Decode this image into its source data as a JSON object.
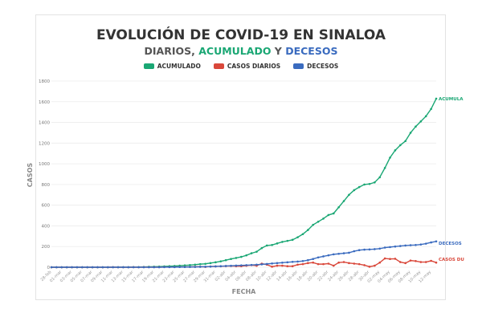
{
  "chart_data": {
    "type": "line",
    "title": "EVOLUCIÓN DE COVID-19 EN SINALOA",
    "subtitle": {
      "part1": "DIARIOS, ",
      "part2": "ACUMULADO",
      "part3": " Y ",
      "part4": "DECESOS"
    },
    "xlabel": "FECHA",
    "ylabel": "CASOS",
    "ylim": [
      0,
      1800
    ],
    "yticks": [
      0,
      200,
      400,
      600,
      800,
      1000,
      1200,
      1400,
      1600,
      1800
    ],
    "grid": true,
    "legend_position": "top",
    "xtick_labels": [
      "28-feb",
      "01-mar",
      "03-mar",
      "05-mar",
      "07-mar",
      "09-mar",
      "11-mar",
      "13-mar",
      "15-mar",
      "17-mar",
      "19-mar",
      "21-mar",
      "23-mar",
      "25-mar",
      "27-mar",
      "29-mar",
      "31-mar",
      "02-abr",
      "04-abr",
      "06-abr",
      "08-abr",
      "10-abr",
      "12-abr",
      "14-abr",
      "16-abr",
      "18-abr",
      "20-abr",
      "22-abr",
      "24-abr",
      "26-abr",
      "28-abr",
      "30-abr",
      "02-may",
      "04-may",
      "06-may",
      "08-may",
      "10-may",
      "12-may"
    ],
    "series": [
      {
        "name": "ACUMULADO",
        "end_label": "ACUMULA",
        "color": "#1aa774",
        "values": [
          0,
          0,
          0,
          0,
          0,
          0,
          0,
          0,
          0,
          0,
          0,
          0,
          1,
          1,
          1,
          1,
          2,
          2,
          3,
          4,
          5,
          6,
          8,
          10,
          12,
          15,
          18,
          21,
          25,
          30,
          33,
          40,
          48,
          57,
          68,
          80,
          90,
          100,
          115,
          135,
          150,
          185,
          210,
          215,
          230,
          245,
          255,
          265,
          290,
          320,
          360,
          410,
          440,
          470,
          505,
          520,
          580,
          640,
          700,
          745,
          775,
          800,
          805,
          820,
          870,
          960,
          1060,
          1130,
          1180,
          1220,
          1300,
          1360,
          1410,
          1460,
          1530,
          1630
        ]
      },
      {
        "name": "CASOS DIARIOS",
        "end_label": "CASOS DU",
        "color": "#d9473a",
        "values": [
          0,
          0,
          0,
          0,
          0,
          0,
          0,
          0,
          0,
          0,
          0,
          0,
          1,
          0,
          0,
          0,
          1,
          0,
          1,
          1,
          1,
          1,
          2,
          2,
          2,
          3,
          3,
          3,
          4,
          5,
          3,
          7,
          8,
          9,
          11,
          12,
          10,
          10,
          15,
          20,
          15,
          35,
          25,
          5,
          15,
          15,
          10,
          10,
          25,
          30,
          40,
          45,
          30,
          30,
          35,
          15,
          45,
          50,
          40,
          35,
          30,
          20,
          5,
          15,
          45,
          85,
          80,
          82,
          50,
          40,
          65,
          60,
          50,
          50,
          62,
          45
        ]
      },
      {
        "name": "DECESOS",
        "end_label": "DECESOS",
        "color": "#3a6bbf",
        "values": [
          0,
          0,
          0,
          0,
          0,
          0,
          0,
          0,
          0,
          0,
          0,
          0,
          0,
          0,
          0,
          0,
          0,
          0,
          0,
          0,
          0,
          0,
          1,
          1,
          1,
          2,
          2,
          3,
          3,
          4,
          5,
          6,
          8,
          10,
          12,
          14,
          16,
          18,
          20,
          22,
          25,
          28,
          32,
          36,
          40,
          44,
          48,
          52,
          55,
          60,
          68,
          80,
          95,
          105,
          115,
          125,
          130,
          135,
          140,
          155,
          165,
          170,
          172,
          175,
          180,
          190,
          195,
          200,
          205,
          210,
          213,
          215,
          220,
          228,
          240,
          250
        ]
      }
    ]
  }
}
